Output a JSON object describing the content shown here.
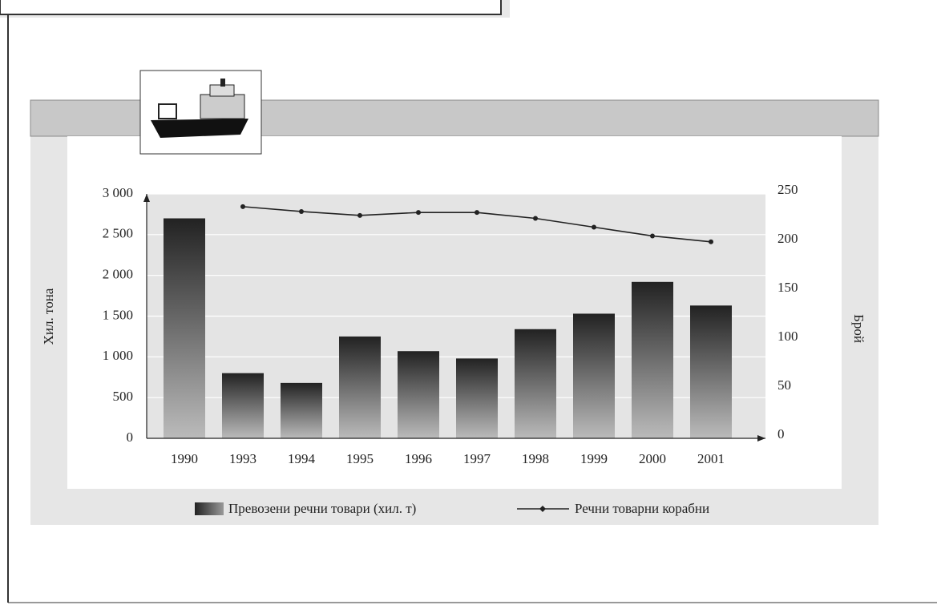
{
  "chart_data": {
    "type": "bar-line",
    "categories": [
      "1990",
      "1993",
      "1994",
      "1995",
      "1996",
      "1997",
      "1998",
      "1999",
      "2000",
      "2001"
    ],
    "series": [
      {
        "name": "Превозени речни товари (хил. т)",
        "type": "bar",
        "color": "#333333",
        "values": [
          2700,
          800,
          680,
          1250,
          1070,
          980,
          1340,
          1530,
          1920,
          1630
        ]
      },
      {
        "name": "Речни товарни корабни",
        "type": "line",
        "axis": "y2",
        "color": "#222222",
        "values": [
          null,
          237,
          232,
          228,
          231,
          231,
          225,
          216,
          207,
          201
        ]
      }
    ],
    "ylabel": "Хил. тона",
    "y2label": "Брой",
    "ylim": [
      0,
      3000
    ],
    "yticks": [
      0,
      500,
      {
        "value": 1000,
        "label": "1 000"
      },
      {
        "value": 1500,
        "label": "1 500"
      },
      {
        "value": 2000,
        "label": "2 000"
      },
      {
        "value": 2500,
        "label": "2 500"
      },
      {
        "value": 3000,
        "label": "3 000"
      }
    ],
    "y2lim": [
      0,
      250
    ],
    "y2ticks": [
      0,
      50,
      100,
      150,
      200,
      250
    ],
    "grid": true,
    "legend": "bottom"
  }
}
